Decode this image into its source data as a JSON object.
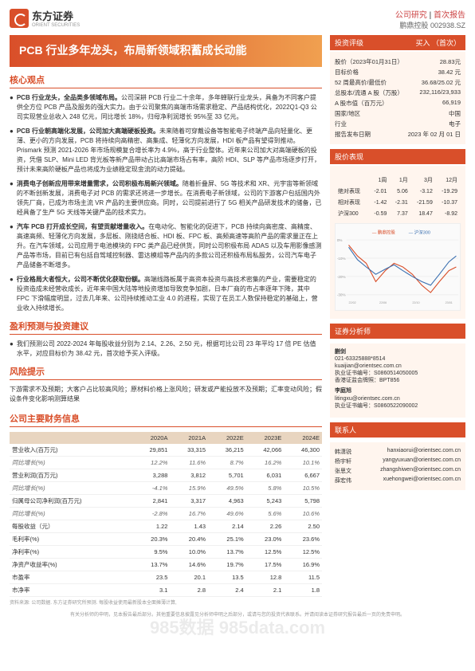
{
  "header": {
    "company": "东方证券",
    "company_en": "ORIENT SECURITIES",
    "doc_type": "公司研究",
    "report_type": "首次报告",
    "stock_name": "鹏鼎控股",
    "stock_code": "002938.SZ"
  },
  "title": "PCB 行业多年龙头，布局新领域积蓄成长动能",
  "core_h": "核心观点",
  "bullets": [
    {
      "b": "PCB 行业龙头，全品类多领域布局。",
      "t": "公司深耕 PCB 行业二十余年，多年蝉联行业龙头，具备为不同客户提供全方位 PCB 产品及服务的强大实力。由于公司聚焦的高端市场需求稳定、产品结构优化，2022Q1-Q3 公司实现营业总收入 248 亿元，同比增长 18%，归母净利润增长 95%至 33 亿元。"
    },
    {
      "b": "PCB 行业朝高端化发展，公司加大高端硬板投资。",
      "t": "未来随着可穿戴设备等智能电子终端产品向轻量化、更薄、更小的方向发展，PCB 将持续向高精密、高集成、轻薄化方向发展，HDI 板产品有望得到推动。Prismark 预测 2021-2026 年市场规模复合增长率为 4.9%，高于行业整体。近年来公司加大对高端硬板的投资，凭借 SLP、Mini LED 背光板等新产品带动占比高端市场占有率，高阶 HDI、SLP 等产品市场逐步打开，预计未来高阶硬板产品也将成为业绩稳定现金流的动力提础。"
    },
    {
      "b": "消费电子创新应用带来增量需求，公司积极布局新兴领域。",
      "t": "随着折叠屏、5G 等技术和 XR、元宇宙等新领域的不断创新发展，消费电子对 PCB 的需求还将进一步增长。在消费电子新领域，公司的下游客户包括国内外领先厂商，已成为市场主流 VR 产品的主要供应商。同时，公司提前进行了 5G 相关产品研发技术的储备，已经具备了生产 5G 天线等关键产品的技术实力。"
    },
    {
      "b": "汽车 PCB 打开成长空间，有望贡献增量收入。",
      "t": "在电动化、智能化的促进下，PCB 持续向高密度、高精度、高速高频、轻薄化方向发展，多层板、刚挠结合板、HDI 板、FPC 板、高频高速等高阶产品的需求量正在上升。在汽车领域，公司应用于电池模块的 FPC 类产品已经供货，同时公司积极布局 ADAS 以及车用影像感测产品等市场，目前已有包括自驾域控制器、雷达模组等产品内的多款公司还积极布局私服务，公司汽车电子产品储备不断增多。"
    },
    {
      "b": "行业格局大者恒大，公司不断优化获取份额。",
      "t": "高端线路板属于高资本投资与高技术密集的产业，需要稳定的投资造成未经营收成长，近年来中国大陆等地投资增加导致竞争加剧，日本厂商的市占率逐年下降，其中 FPC 下滑幅度明显，过去几年来、公司持续推动工业 4.0 的进程，实现了在员工人数保持稳定的基础上，营业收入持续增长。"
    }
  ],
  "forecast_h": "盈利预测与投资建议",
  "forecast": "我们预测公司 2022-2024 年每股收益分别为 2.14、2.26、2.50 元，根据可比公司 23 年平均 17 倍 PE 估值水平，对应目标价为 38.42 元，首次给予买入评级。",
  "risk_h": "风险提示",
  "risk": "下游需求不及预期；大客户占比较高风险；原材料价格上涨风险；研发或产能投放不及预期；汇率变动风险；假设条件变化影响测算结果",
  "fin_h": "公司主要财务信息",
  "fin_cols": [
    "",
    "2020A",
    "2021A",
    "2022E",
    "2023E",
    "2024E"
  ],
  "fin_rows": [
    {
      "n": "营业收入(百万元)",
      "v": [
        "29,851",
        "33,315",
        "36,215",
        "42,066",
        "46,300"
      ]
    },
    {
      "n": "同比增长(%)",
      "v": [
        "12.2%",
        "11.6%",
        "8.7%",
        "16.2%",
        "10.1%"
      ],
      "i": 1
    },
    {
      "n": "营业利润(百万元)",
      "v": [
        "3,288",
        "3,812",
        "5,701",
        "6,031",
        "6,667"
      ]
    },
    {
      "n": "同比增长(%)",
      "v": [
        "-4.1%",
        "15.9%",
        "49.5%",
        "5.8%",
        "10.5%"
      ],
      "i": 1
    },
    {
      "n": "归属母公司净利润(百万元)",
      "v": [
        "2,841",
        "3,317",
        "4,963",
        "5,243",
        "5,798"
      ]
    },
    {
      "n": "同比增长(%)",
      "v": [
        "-2.8%",
        "16.7%",
        "49.6%",
        "5.6%",
        "10.6%"
      ],
      "i": 1
    },
    {
      "n": "每股收益（元）",
      "v": [
        "1.22",
        "1.43",
        "2.14",
        "2.26",
        "2.50"
      ]
    },
    {
      "n": "毛利率(%)",
      "v": [
        "20.3%",
        "20.4%",
        "25.1%",
        "23.0%",
        "23.6%"
      ]
    },
    {
      "n": "净利率(%)",
      "v": [
        "9.5%",
        "10.0%",
        "13.7%",
        "12.5%",
        "12.5%"
      ]
    },
    {
      "n": "净资产收益率(%)",
      "v": [
        "13.7%",
        "14.6%",
        "19.7%",
        "17.5%",
        "16.9%"
      ]
    },
    {
      "n": "市盈率",
      "v": [
        "23.5",
        "20.1",
        "13.5",
        "12.8",
        "11.5"
      ]
    },
    {
      "n": "市净率",
      "v": [
        "3.1",
        "2.8",
        "2.4",
        "2.1",
        "1.8"
      ]
    }
  ],
  "fin_src": "资料来源: 公司数据. 东方证券研究所预测. 每股收益使用最新股本全面摊薄计算,",
  "rating_h": "投资评级",
  "rating_v": "买入 （首次）",
  "info": [
    {
      "l": "股价（2023年01月31日）",
      "v": "28.83元"
    },
    {
      "l": "目标价格",
      "v": "38.42 元"
    },
    {
      "l": "52 周最高价/最低价",
      "v": "36.68/25.02 元"
    },
    {
      "l": "总股本/流通 A 股（万股）",
      "v": "232,116/23,933"
    },
    {
      "l": "A 股市值（百万元）",
      "v": "66,919"
    },
    {
      "l": "国家/地区",
      "v": "中国"
    },
    {
      "l": "行业",
      "v": "电子"
    },
    {
      "l": "报告发布日期",
      "v": "2023 年 02 月 01 日"
    }
  ],
  "perf_h": "股价表现",
  "perf_cols": [
    "",
    "1周",
    "1月",
    "3月",
    "12月"
  ],
  "perf_rows": [
    {
      "n": "绝对表现",
      "v": [
        "-2.01",
        "5.06",
        "-3.12",
        "-19.29"
      ]
    },
    {
      "n": "相对表现",
      "v": [
        "-1.42",
        "-2.31",
        "-21.59",
        "-10.37"
      ]
    },
    {
      "n": "沪深300",
      "v": [
        "-0.59",
        "7.37",
        "18.47",
        "-8.92"
      ]
    }
  ],
  "chart_legend": [
    "鹏鼎控股",
    "沪深300"
  ],
  "chart_colors": [
    "#d94f2a",
    "#3a6fb0"
  ],
  "chart_y": [
    "0%",
    "-10%",
    "-20%",
    "-30%"
  ],
  "chart_x": [
    "22/01",
    "22/02",
    "22/03",
    "22/04",
    "22/05",
    "22/06",
    "22/07",
    "22/08",
    "22/09",
    "22/10",
    "22/11",
    "22/12",
    "23/01"
  ],
  "analyst_h": "证券分析师",
  "analysts": [
    {
      "name": "蒯剑",
      "tel": "021-63325888*8514",
      "email": "kuaijian@orientsec.com.cn",
      "lic": "执业证书编号：S0860514050005",
      "hk": "香港证监会牌照：BPT856"
    },
    {
      "name": "李庭旭",
      "email": "litingxu@orientsec.com.cn",
      "lic": "执业证书编号：S0860522090002"
    }
  ],
  "contact_h": "联系人",
  "contacts": [
    {
      "n": "韩潇锐",
      "e": "hanxiaorui@orientsec.com.cn"
    },
    {
      "n": "杨宇轩",
      "e": "yangyuxuan@orientsec.com.cn"
    },
    {
      "n": "张思文",
      "e": "zhangshiwen@orientsec.com.cn"
    },
    {
      "n": "薛宏伟",
      "e": "xuehongwei@orientsec.com.cn"
    }
  ],
  "footer": "有关分析师的申明，见本报告最后部分。其他重要信息披露见分析师申明之后部分，或请与您的投资代表联系。并请阅读本证券研究报告最后一页的免责申明。",
  "wm": "985数据 985data.com"
}
